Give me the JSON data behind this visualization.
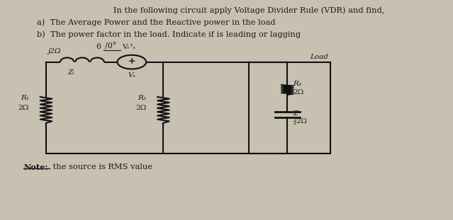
{
  "bg_color": "#c8c0b0",
  "title_line1": "In the following circuit apply Voltage Divider Rule (VDR) and find,",
  "title_line2": "a)  The Average Power and the Reactive power in the load",
  "title_line3": "b)  The power factor in the load. Indicate if is leading or lagging",
  "note_bold": "Note:",
  "note_rest": " the source is RMS value",
  "text_color": "#1a1a1a",
  "lw": 1.5,
  "lc": "#111111",
  "R1_label": "R₁",
  "R1_val": "2Ω",
  "R2_label": "R₂",
  "R2_val": "2Ω",
  "R3_label": "R₃",
  "R3_val": "2Ω",
  "ZL_label": "Zₗ",
  "ZL_ind": "j2Ω",
  "Vs_label": "Vₛ",
  "Zc_label": "Zᶜ",
  "Zc_val": "-j2Ω",
  "Load_label": "Load",
  "Vs_source_label": "6",
  "Vs_angle": "/0°",
  "Vs_unit": "Vᵣᵀₛ"
}
